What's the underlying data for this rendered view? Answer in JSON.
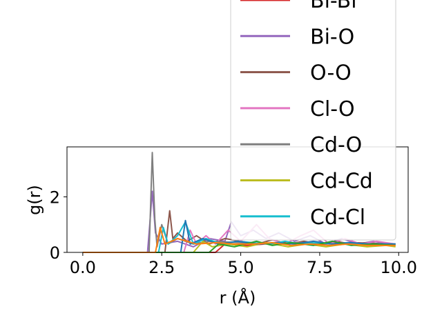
{
  "chart_data": {
    "type": "line",
    "title": "",
    "xlabel": "r (Å)",
    "ylabel": "g(r)",
    "xlim": [
      -0.5,
      10.3
    ],
    "ylim": [
      0,
      3.8
    ],
    "xticks": [
      0.0,
      2.5,
      5.0,
      7.5,
      10.0
    ],
    "xtick_labels": [
      "0.0",
      "2.5",
      "5.0",
      "7.5",
      "10.0"
    ],
    "yticks": [
      0,
      2
    ],
    "ytick_labels": [
      "0",
      "2"
    ],
    "grid": false,
    "legend_placement": "upper-right",
    "series": [
      {
        "name": "Bi-Bi",
        "color": "#d62728",
        "x": [
          0,
          2.0,
          4.2,
          4.5,
          5.2,
          6.3,
          7.4,
          8.6,
          9.8
        ],
        "y": [
          0,
          0,
          0,
          0.3,
          0.25,
          0.35,
          0.3,
          0.35,
          0.3
        ]
      },
      {
        "name": "Bi-O",
        "color": "#9467bd",
        "x": [
          0,
          2.05,
          2.12,
          2.2,
          2.3,
          2.5,
          3.0,
          3.5,
          4.0,
          4.5,
          4.7,
          5.0,
          5.4,
          5.8,
          6.2,
          6.7,
          7.2,
          7.7,
          8.2,
          8.7,
          9.2,
          9.8
        ],
        "y": [
          0,
          0,
          1.0,
          2.2,
          0.7,
          0.3,
          0.4,
          0.2,
          0.5,
          0.4,
          1.1,
          0.6,
          0.8,
          0.5,
          0.7,
          0.4,
          0.6,
          0.3,
          0.5,
          0.3,
          0.4,
          0.3
        ]
      },
      {
        "name": "O-O",
        "color": "#8c564b",
        "x": [
          0,
          2.6,
          2.75,
          2.85,
          3.0,
          3.3,
          3.6,
          4.0,
          4.5,
          5.0,
          5.5,
          6.0,
          6.5,
          7.0,
          7.5,
          8.0,
          8.5,
          9.0,
          9.5,
          9.9
        ],
        "y": [
          0,
          0,
          1.5,
          0.5,
          0.7,
          0.4,
          0.6,
          0.3,
          0.5,
          0.4,
          0.3,
          0.45,
          0.3,
          0.4,
          0.3,
          0.4,
          0.3,
          0.35,
          0.3,
          0.3
        ]
      },
      {
        "name": "Cl-O",
        "color": "#e377c2",
        "x": [
          0,
          3.2,
          3.4,
          3.6,
          3.9,
          4.2,
          4.6,
          5.0,
          5.5,
          5.9,
          6.4,
          6.9,
          7.3,
          7.8,
          8.3,
          8.8,
          9.3,
          9.9
        ],
        "y": [
          0,
          0,
          0.8,
          0.3,
          0.6,
          0.3,
          0.8,
          0.4,
          1.0,
          0.5,
          0.3,
          0.6,
          0.8,
          0.3,
          0.5,
          0.3,
          0.4,
          0.3
        ]
      },
      {
        "name": "Cd-O",
        "color": "#7f7f7f",
        "x": [
          0,
          2.1,
          2.15,
          2.2,
          2.28,
          2.35,
          2.5,
          2.7,
          3.0,
          3.5,
          4.0,
          5.0,
          6.0,
          7.0,
          8.0,
          9.0,
          9.9
        ],
        "y": [
          0,
          0,
          1.8,
          3.6,
          1.2,
          0.2,
          1.0,
          0.3,
          0.5,
          0.3,
          0.4,
          0.35,
          0.3,
          0.35,
          0.3,
          0.3,
          0.3
        ]
      },
      {
        "name": "Cd-Cd",
        "color": "#bcbd22",
        "x": [
          0,
          3.5,
          3.8,
          4.1,
          4.6,
          5.2,
          5.8,
          6.5,
          7.1,
          7.7,
          8.3,
          9.0,
          9.6,
          9.9
        ],
        "y": [
          0,
          0,
          0.4,
          0.2,
          0.3,
          0.2,
          0.35,
          0.2,
          0.3,
          0.2,
          0.3,
          0.2,
          0.25,
          0.2
        ]
      },
      {
        "name": "Cd-Cl",
        "color": "#17becf",
        "x": [
          0,
          2.4,
          2.55,
          2.7,
          3.0,
          3.25,
          3.5,
          3.9,
          4.4,
          4.9,
          5.4,
          5.9,
          6.4,
          6.9,
          7.4,
          7.9,
          8.4,
          8.9,
          9.4,
          9.9
        ],
        "y": [
          0,
          0,
          0.9,
          0.3,
          0.6,
          1.1,
          0.3,
          0.5,
          0.3,
          0.4,
          0.35,
          0.3,
          0.4,
          0.3,
          0.35,
          0.3,
          0.35,
          0.3,
          0.3,
          0.3
        ]
      },
      {
        "name": "",
        "color": "#1f77b4",
        "x": [
          0,
          3.1,
          3.25,
          3.4,
          3.8,
          4.3,
          4.9,
          5.5,
          6.1,
          6.7,
          7.3,
          7.9,
          8.5,
          9.1,
          9.7,
          9.9
        ],
        "y": [
          0,
          0,
          1.15,
          0.3,
          0.5,
          0.3,
          0.4,
          0.3,
          0.35,
          0.3,
          0.4,
          0.3,
          0.35,
          0.3,
          0.3,
          0.3
        ]
      },
      {
        "name": "",
        "color": "#2ca02c",
        "x": [
          0,
          4.0,
          4.3,
          4.8,
          5.5,
          6.0,
          6.6,
          7.3,
          7.9,
          8.5,
          9.2,
          9.9
        ],
        "y": [
          0,
          0,
          0.3,
          0.2,
          0.4,
          0.25,
          0.35,
          0.25,
          0.4,
          0.25,
          0.3,
          0.25
        ]
      },
      {
        "name": "",
        "color": "#ff7f0e",
        "x": [
          0,
          2.3,
          2.45,
          2.6,
          3.0,
          3.6,
          4.2,
          4.8,
          5.4,
          6.0,
          6.6,
          7.2,
          7.8,
          8.4,
          9.0,
          9.6,
          9.9
        ],
        "y": [
          0,
          0,
          0.9,
          0.3,
          0.5,
          0.3,
          0.35,
          0.3,
          0.3,
          0.35,
          0.25,
          0.3,
          0.25,
          0.3,
          0.25,
          0.25,
          0.25
        ]
      }
    ],
    "legend_entries": [
      "Bi-Bi",
      "Bi-O",
      "O-O",
      "Cl-O",
      "Cd-O",
      "Cd-Cd",
      "Cd-Cl"
    ]
  }
}
